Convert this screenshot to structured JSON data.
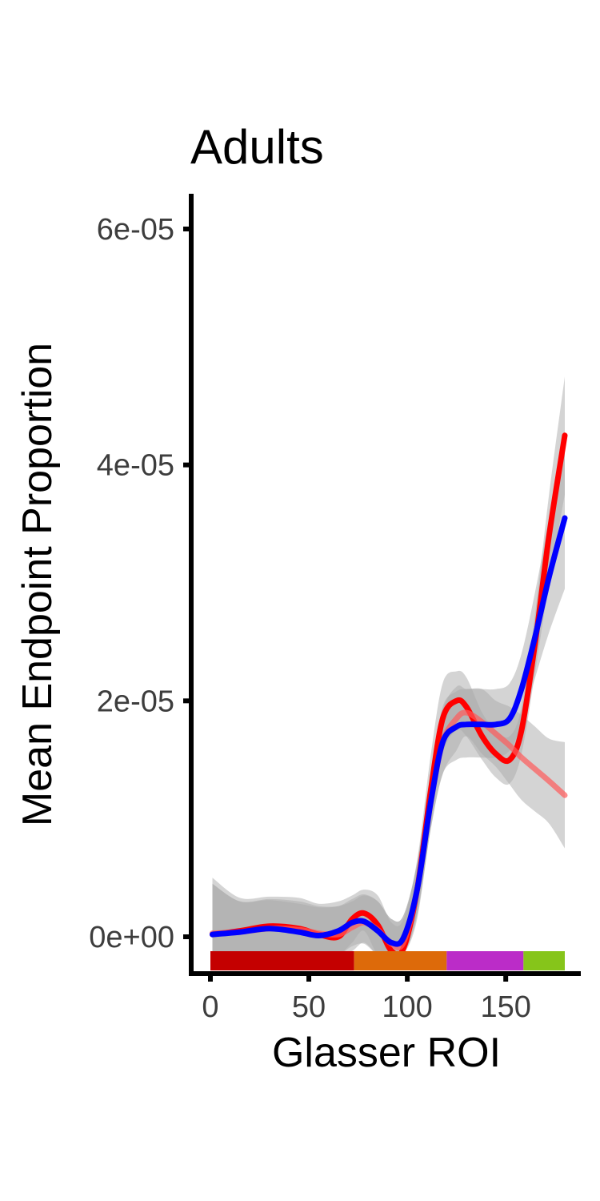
{
  "chart_data": {
    "type": "line",
    "title": "Adults",
    "xlabel": "Glasser ROI",
    "ylabel": "Mean Endpoint Proportion",
    "xlim": [
      0,
      180
    ],
    "ylim": [
      -1.5e-06,
      6.3e-05
    ],
    "x_ticks": [
      0,
      50,
      100,
      150
    ],
    "x_tick_labels": [
      "0",
      "50",
      "100",
      "150"
    ],
    "y_ticks": [
      0,
      2e-05,
      4e-05,
      6e-05
    ],
    "y_tick_labels": [
      "0e+00",
      "2e-05",
      "4e-05",
      "6e-05"
    ],
    "grid": false,
    "legend": "none",
    "series": [
      {
        "color": "#ff0000",
        "opacity": 1.0,
        "x": [
          1,
          15,
          30,
          45,
          55,
          65,
          72,
          78,
          85,
          92,
          98,
          105,
          112,
          118,
          125,
          130,
          138,
          145,
          152,
          158,
          165,
          172,
          180
        ],
        "y": [
          2e-07,
          5e-07,
          9e-07,
          7e-07,
          2e-07,
          0.0,
          1.5e-06,
          2e-06,
          1e-06,
          -1.2e-06,
          -1e-06,
          4e-06,
          1.25e-05,
          1.85e-05,
          2e-05,
          1.95e-05,
          1.7e-05,
          1.55e-05,
          1.5e-05,
          1.75e-05,
          2.5e-05,
          3.4e-05,
          4.25e-05
        ],
        "band_upper": [
          5e-06,
          3.3e-06,
          3.4e-06,
          3.3e-06,
          2.8e-06,
          3e-06,
          3.5e-06,
          4e-06,
          3.5e-06,
          1.2e-06,
          1.5e-06,
          6.5e-06,
          1.55e-05,
          2.15e-05,
          2.25e-05,
          2.2e-05,
          1.9e-05,
          1.75e-05,
          1.7e-05,
          1.95e-05,
          2.75e-05,
          3.75e-05,
          4.75e-05
        ],
        "band_lower": [
          -1.5e-06,
          -1.5e-06,
          -1.5e-06,
          -1.5e-06,
          -1.5e-06,
          -1.5e-06,
          -5e-07,
          5e-07,
          -1.5e-06,
          -1.5e-06,
          -1.5e-06,
          1.5e-06,
          9.5e-06,
          1.55e-05,
          1.75e-05,
          1.7e-05,
          1.5e-05,
          1.35e-05,
          1.3e-05,
          1.55e-05,
          2.25e-05,
          3e-05,
          3.75e-05
        ]
      },
      {
        "color": "#ff5a5a",
        "opacity": 0.7,
        "x": [
          1,
          15,
          30,
          45,
          55,
          65,
          72,
          78,
          85,
          92,
          98,
          105,
          112,
          118,
          125,
          130,
          138,
          145,
          152,
          158,
          165,
          172,
          180
        ],
        "y": [
          3e-07,
          4e-07,
          7e-07,
          6e-07,
          3e-07,
          2e-07,
          8e-07,
          1.2e-06,
          6e-07,
          -6e-07,
          -5e-07,
          4e-06,
          1.15e-05,
          1.65e-05,
          1.85e-05,
          1.9e-05,
          1.82e-05,
          1.72e-05,
          1.62e-05,
          1.52e-05,
          1.42e-05,
          1.32e-05,
          1.2e-05
        ],
        "band_upper": [
          4.5e-06,
          3e-06,
          3.2e-06,
          3e-06,
          2.6e-06,
          2.6e-06,
          3e-06,
          3.5e-06,
          3e-06,
          1.5e-06,
          1.8e-06,
          6.2e-06,
          1.38e-05,
          1.92e-05,
          2.12e-05,
          2.1e-05,
          2.1e-05,
          2e-05,
          1.95e-05,
          1.88e-05,
          1.78e-05,
          1.68e-05,
          1.65e-05
        ],
        "band_lower": [
          -1.5e-06,
          -1.5e-06,
          -1.5e-06,
          -1.5e-06,
          -1.5e-06,
          -1.5e-06,
          -1.2e-06,
          -5e-07,
          -1.5e-06,
          -1.5e-06,
          -1.5e-06,
          2e-06,
          9.2e-06,
          1.38e-05,
          1.58e-05,
          1.7e-05,
          1.55e-05,
          1.44e-05,
          1.29e-05,
          1.16e-05,
          1.06e-05,
          9.6e-06,
          7.5e-06
        ]
      },
      {
        "color": "#0000ff",
        "opacity": 1.0,
        "x": [
          1,
          15,
          30,
          45,
          55,
          65,
          72,
          78,
          85,
          92,
          98,
          105,
          112,
          118,
          125,
          130,
          138,
          145,
          152,
          158,
          165,
          172,
          180
        ],
        "y": [
          2e-07,
          4e-07,
          7e-07,
          4e-07,
          1e-07,
          5e-07,
          1.2e-06,
          1.3e-06,
          5e-07,
          -5e-07,
          -1e-07,
          4e-06,
          1.15e-05,
          1.65e-05,
          1.78e-05,
          1.8e-05,
          1.8e-05,
          1.8e-05,
          1.85e-05,
          2.1e-05,
          2.55e-05,
          3.05e-05,
          3.55e-05
        ],
        "band_upper": [
          4.5e-06,
          3e-06,
          3.1e-06,
          2.8e-06,
          2.5e-06,
          2.6e-06,
          3.2e-06,
          3.6e-06,
          3e-06,
          1.5e-06,
          1.8e-06,
          6.3e-06,
          1.4e-05,
          1.95e-05,
          2.08e-05,
          2.1e-05,
          2.1e-05,
          2.1e-05,
          2.15e-05,
          2.4e-05,
          2.93e-05,
          3.55e-05,
          4.25e-05
        ],
        "band_lower": [
          -1.5e-06,
          -1.5e-06,
          -1.5e-06,
          -1.5e-06,
          -1.5e-06,
          -1.5e-06,
          -8e-07,
          -6e-07,
          -1.5e-06,
          -1.5e-06,
          -1.5e-06,
          1.8e-06,
          9.2e-06,
          1.38e-05,
          1.5e-05,
          1.52e-05,
          1.52e-05,
          1.52e-05,
          1.58e-05,
          1.8e-05,
          2.2e-05,
          2.58e-05,
          2.95e-05
        ]
      }
    ],
    "category_bar": [
      {
        "from": 0,
        "to": 73,
        "color": "#c40000"
      },
      {
        "from": 73,
        "to": 120,
        "color": "#dd6a0a"
      },
      {
        "from": 120,
        "to": 159,
        "color": "#bb2cc8"
      },
      {
        "from": 159,
        "to": 180,
        "color": "#86c51a"
      }
    ],
    "band_fill": "#a9a9a9"
  }
}
